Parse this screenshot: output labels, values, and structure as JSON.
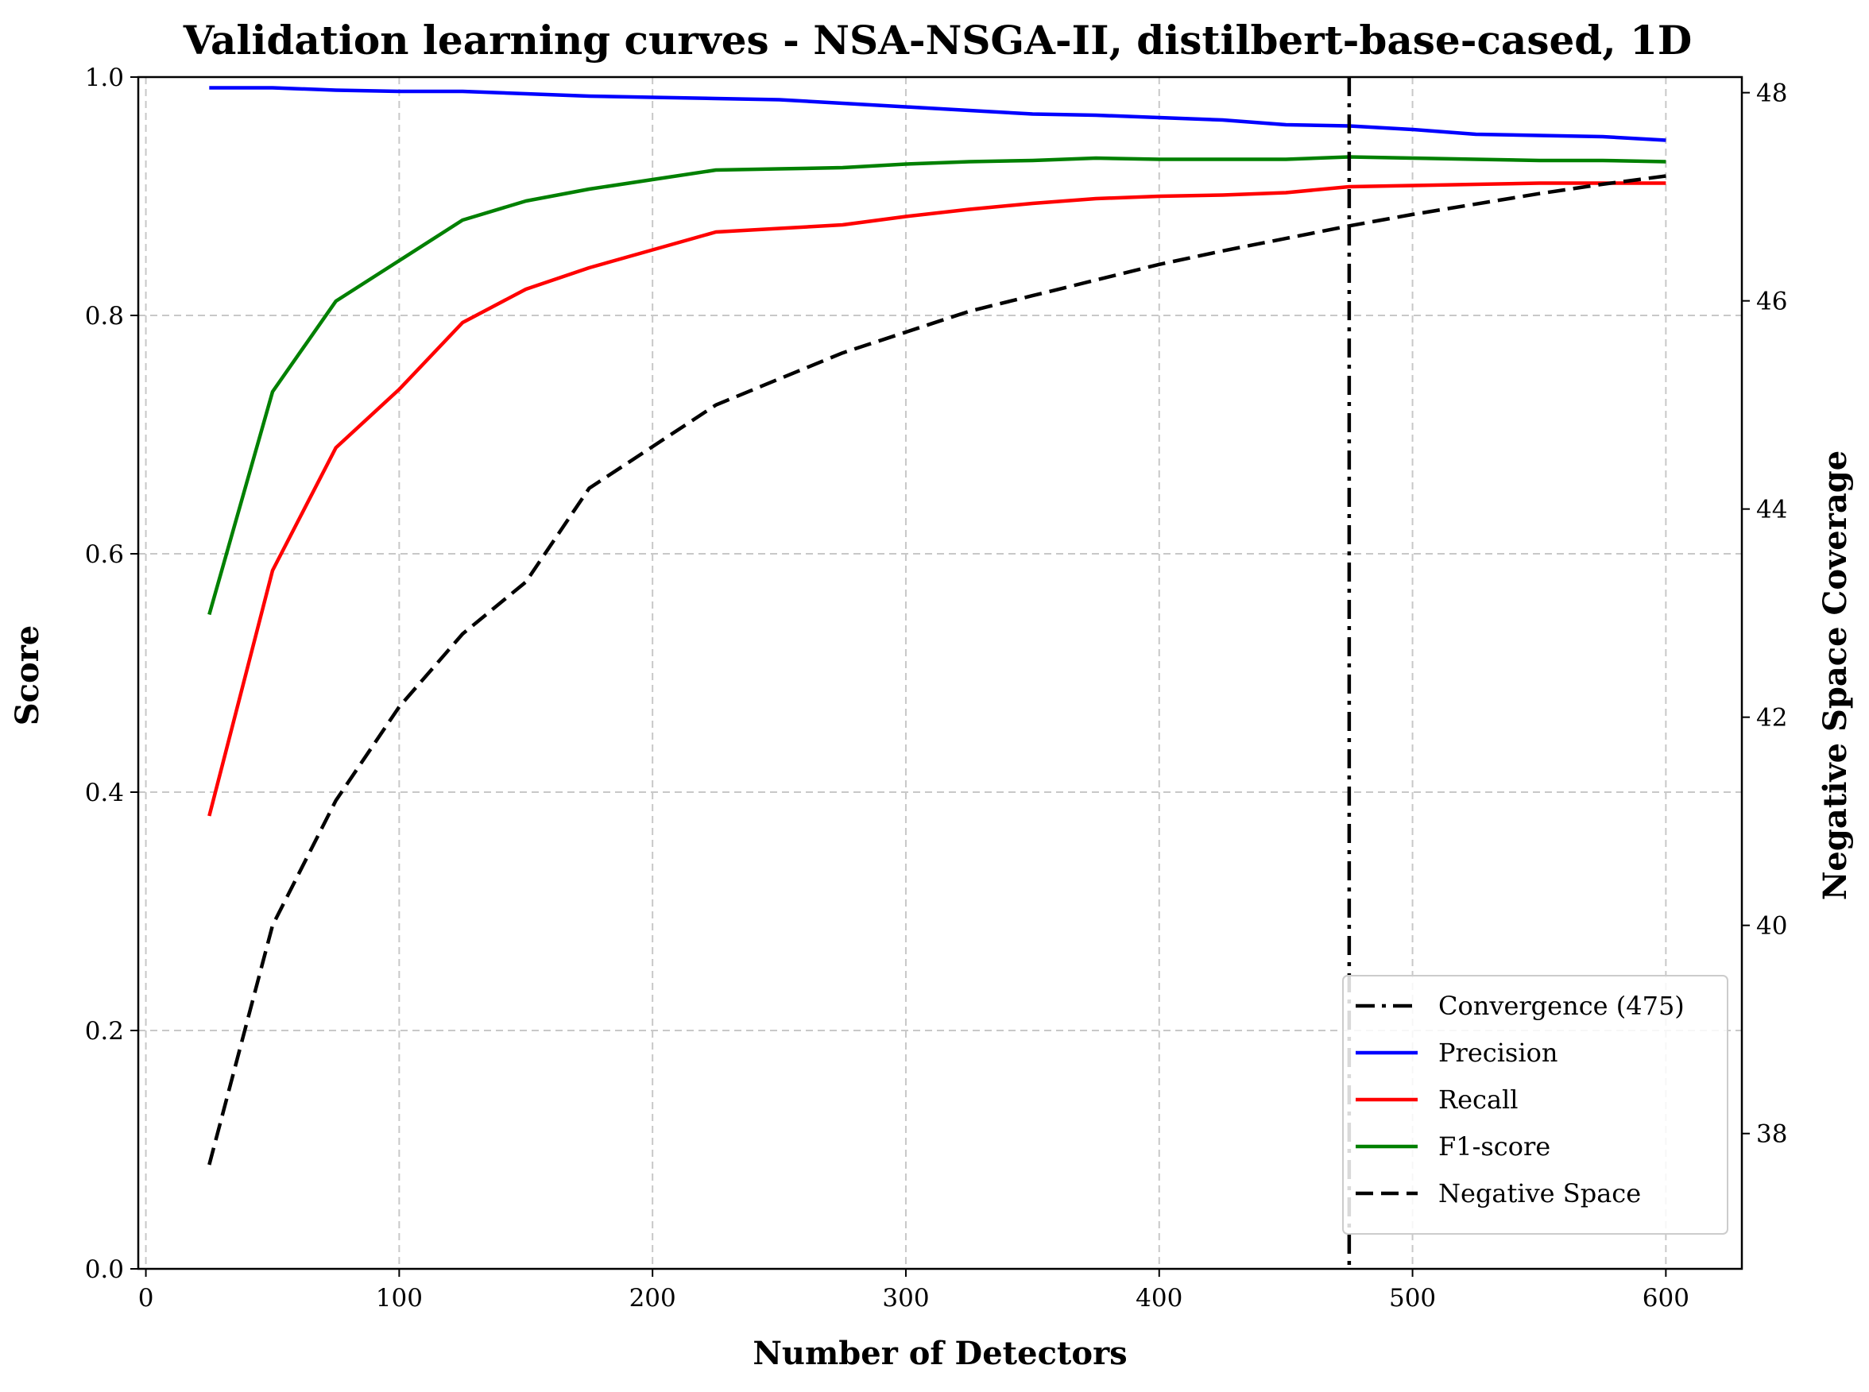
{
  "chart_data": {
    "type": "line",
    "title": "Validation learning curves - NSA-NSGA-II, distilbert-base-cased, 1D",
    "xlabel": "Number of Detectors",
    "ylabel": "Score",
    "y2label": "Negative Space Coverage",
    "xlim": [
      -3,
      630
    ],
    "ylim": [
      0,
      1.0
    ],
    "y2lim": [
      36.7,
      48.15
    ],
    "xticks": [
      0,
      100,
      200,
      300,
      400,
      500,
      600
    ],
    "yticks": [
      0.0,
      0.2,
      0.4,
      0.6,
      0.8,
      1.0
    ],
    "yticklabels": [
      "0.0",
      "0.2",
      "0.4",
      "0.6",
      "0.8",
      "1.0"
    ],
    "y2ticks": [
      38,
      40,
      42,
      44,
      46,
      48
    ],
    "grid": true,
    "legend_position": "lower-right",
    "x": [
      25,
      50,
      75,
      100,
      125,
      150,
      175,
      200,
      225,
      250,
      275,
      300,
      325,
      350,
      375,
      400,
      425,
      450,
      475,
      500,
      525,
      550,
      575,
      600
    ],
    "series": [
      {
        "name": "Precision",
        "axis": "left",
        "color": "#0000ff",
        "style": "solid",
        "values": [
          0.991,
          0.991,
          0.989,
          0.988,
          0.988,
          0.986,
          0.984,
          0.983,
          0.982,
          0.981,
          0.978,
          0.975,
          0.972,
          0.969,
          0.968,
          0.966,
          0.964,
          0.96,
          0.959,
          0.956,
          0.952,
          0.951,
          0.95,
          0.947
        ]
      },
      {
        "name": "Recall",
        "axis": "left",
        "color": "#ff0000",
        "style": "solid",
        "values": [
          0.38,
          0.586,
          0.689,
          0.738,
          0.794,
          0.822,
          0.84,
          0.855,
          0.87,
          0.873,
          0.876,
          0.883,
          0.889,
          0.894,
          0.898,
          0.9,
          0.901,
          0.903,
          0.908,
          0.909,
          0.91,
          0.911,
          0.911,
          0.911
        ]
      },
      {
        "name": "F1-score",
        "axis": "left",
        "color": "#008000",
        "style": "solid",
        "values": [
          0.549,
          0.736,
          0.812,
          0.846,
          0.88,
          0.896,
          0.906,
          0.914,
          0.922,
          0.923,
          0.924,
          0.927,
          0.929,
          0.93,
          0.932,
          0.931,
          0.931,
          0.931,
          0.933,
          0.932,
          0.931,
          0.93,
          0.93,
          0.929
        ]
      },
      {
        "name": "Negative Space",
        "axis": "right",
        "color": "#000000",
        "style": "dashed",
        "values": [
          37.7,
          40.0,
          41.2,
          42.1,
          42.8,
          43.3,
          44.2,
          44.6,
          45.0,
          45.25,
          45.5,
          45.7,
          45.9,
          46.05,
          46.2,
          46.35,
          46.48,
          46.6,
          46.72,
          46.83,
          46.93,
          47.03,
          47.12,
          47.2
        ]
      }
    ],
    "vline": {
      "name": "Convergence (475)",
      "x": 475,
      "color": "#000000",
      "style": "dashdot"
    },
    "legend": [
      "Convergence (475)",
      "Precision",
      "Recall",
      "F1-score",
      "Negative Space"
    ]
  }
}
